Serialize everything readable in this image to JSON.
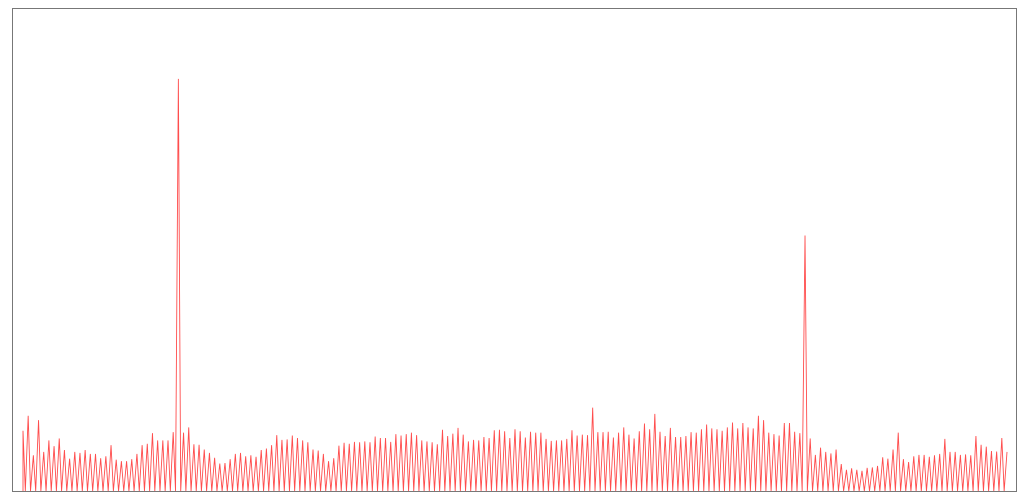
{
  "chart_data": {
    "type": "line",
    "title": "",
    "xlabel": "",
    "ylabel": "",
    "grid": false,
    "line_color": "#ff4d4d",
    "frame_color": "#777777",
    "background": "#ffffff",
    "ylim": [
      0,
      100
    ],
    "baseline": 0,
    "peaks": [
      12.5,
      15.6,
      7.4,
      14.7,
      8.1,
      10.5,
      9.3,
      10.9,
      8.5,
      6.7,
      8.1,
      7.9,
      8.5,
      7.7,
      7.7,
      6.8,
      7.2,
      9.5,
      6.5,
      6.2,
      6.2,
      6.6,
      7.7,
      9.5,
      9.8,
      12.0,
      10.5,
      10.5,
      10.5,
      12.2,
      85.5,
      12.1,
      13.2,
      9.7,
      9.6,
      8.6,
      7.9,
      6.9,
      5.7,
      5.8,
      6.6,
      7.7,
      7.9,
      7.2,
      7.4,
      7.1,
      8.5,
      8.8,
      9.5,
      11.6,
      10.6,
      10.7,
      11.5,
      11.0,
      10.5,
      10.1,
      8.6,
      8.4,
      7.7,
      6.2,
      6.8,
      9.4,
      10.0,
      9.8,
      10.2,
      10.1,
      10.3,
      10.1,
      11.3,
      11.0,
      11.0,
      10.2,
      11.8,
      11.5,
      11.8,
      12.1,
      11.6,
      10.5,
      10.3,
      10.1,
      9.7,
      12.7,
      11.4,
      11.9,
      13.1,
      11.7,
      10.3,
      10.6,
      10.5,
      11.2,
      11.0,
      12.6,
      12.7,
      12.4,
      11.0,
      12.8,
      12.4,
      11.1,
      12.3,
      12.1,
      12.1,
      10.8,
      10.4,
      10.5,
      10.5,
      10.8,
      12.6,
      11.5,
      11.7,
      11.6,
      17.3,
      12.2,
      12.2,
      12.3,
      11.1,
      12.1,
      13.2,
      11.7,
      10.9,
      12.4,
      14.0,
      12.8,
      16.0,
      12.3,
      11.4,
      13.1,
      11.2,
      11.2,
      11.4,
      12.2,
      12.1,
      12.8,
      13.8,
      13.0,
      12.8,
      12.5,
      13.2,
      14.2,
      13.0,
      14.1,
      13.2,
      13.0,
      15.6,
      14.7,
      12.1,
      11.8,
      11.5,
      14.1,
      14.1,
      12.3,
      12.0,
      53.0,
      10.9,
      7.5,
      9.0,
      8.1,
      7.8,
      8.6,
      5.6,
      4.4,
      4.7,
      4.4,
      4.2,
      4.8,
      4.9,
      5.2,
      7.0,
      6.7,
      8.6,
      12.1,
      6.6,
      6.0,
      7.2,
      7.5,
      7.5,
      7.1,
      7.4,
      7.7,
      10.8,
      8.1,
      8.1,
      7.5,
      7.6,
      7.4,
      11.4,
      9.6,
      9.2,
      8.3,
      8.2,
      11.0,
      8.1
    ]
  }
}
